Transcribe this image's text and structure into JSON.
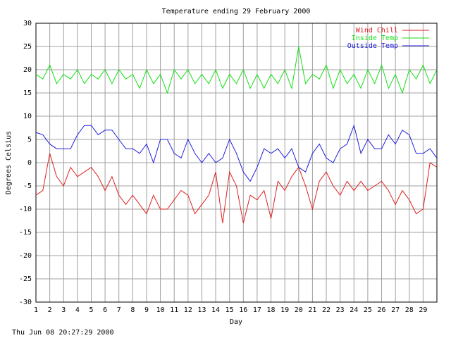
{
  "chart_data": {
    "type": "line",
    "title": "Temperature ending 29 February 2000",
    "x_label": "Day",
    "y_label": "Degrees Celsius",
    "footer": "Thu Jun 08 20:27:29 2000",
    "xlim": [
      1,
      30
    ],
    "ylim": [
      -30,
      30
    ],
    "xticks": [
      1,
      2,
      3,
      4,
      5,
      6,
      7,
      8,
      9,
      10,
      11,
      12,
      13,
      14,
      15,
      16,
      17,
      18,
      19,
      20,
      21,
      22,
      23,
      24,
      25,
      26,
      27,
      28,
      29
    ],
    "yticks": [
      -30,
      -25,
      -20,
      -15,
      -10,
      -5,
      0,
      5,
      10,
      15,
      20,
      25,
      30
    ],
    "grid": true,
    "legend": "top-right",
    "x": [
      1,
      1.5,
      2,
      2.5,
      3,
      3.5,
      4,
      4.5,
      5,
      5.5,
      6,
      6.5,
      7,
      7.5,
      8,
      8.5,
      9,
      9.5,
      10,
      10.5,
      11,
      11.5,
      12,
      12.5,
      13,
      13.5,
      14,
      14.5,
      15,
      15.5,
      16,
      16.5,
      17,
      17.5,
      18,
      18.5,
      19,
      19.5,
      20,
      20.5,
      21,
      21.5,
      22,
      22.5,
      23,
      23.5,
      24,
      24.5,
      25,
      25.5,
      26,
      26.5,
      27,
      27.5,
      28,
      28.5,
      29,
      29.5,
      30
    ],
    "series": [
      {
        "name": "Wind Chill",
        "color": "#e02020",
        "values": [
          -7,
          -6,
          2,
          -3,
          -5,
          -1,
          -3,
          -2,
          -1,
          -3,
          -6,
          -3,
          -7,
          -9,
          -7,
          -9,
          -11,
          -7,
          -10,
          -10,
          -8,
          -6,
          -7,
          -11,
          -9,
          -7,
          -2,
          -13,
          -2,
          -5,
          -13,
          -7,
          -8,
          -6,
          -12,
          -4,
          -6,
          -3,
          -1,
          -5,
          -10,
          -4,
          -2,
          -5,
          -7,
          -4,
          -6,
          -4,
          -6,
          -5,
          -4,
          -6,
          -9,
          -6,
          -8,
          -11,
          -10,
          0,
          -1
        ]
      },
      {
        "name": "Inside Temp",
        "color": "#10e010",
        "values": [
          19,
          18,
          21,
          17,
          19,
          18,
          20,
          17,
          19,
          18,
          20,
          17,
          20,
          18,
          19,
          16,
          20,
          17,
          19,
          15,
          20,
          18,
          20,
          17,
          19,
          17,
          20,
          16,
          19,
          17,
          20,
          16,
          19,
          16,
          19,
          17,
          20,
          16,
          25,
          17,
          19,
          18,
          21,
          16,
          20,
          17,
          19,
          16,
          20,
          17,
          21,
          16,
          19,
          15,
          20,
          18,
          21,
          17,
          20
        ]
      },
      {
        "name": "Outside Temp",
        "color": "#2020e0",
        "values": [
          6.5,
          6,
          4,
          3,
          3,
          3,
          6,
          8,
          8,
          6,
          7,
          7,
          5,
          3,
          3,
          2,
          4,
          0,
          5,
          5,
          2,
          1,
          5,
          2,
          0,
          2,
          0,
          1,
          5,
          2,
          -2,
          -4,
          -1,
          3,
          2,
          3,
          1,
          3,
          -1,
          -2,
          2,
          4,
          1,
          0,
          3,
          4,
          8,
          2,
          5,
          3,
          3,
          6,
          4,
          7,
          6,
          2,
          2,
          3,
          1
        ]
      }
    ]
  }
}
